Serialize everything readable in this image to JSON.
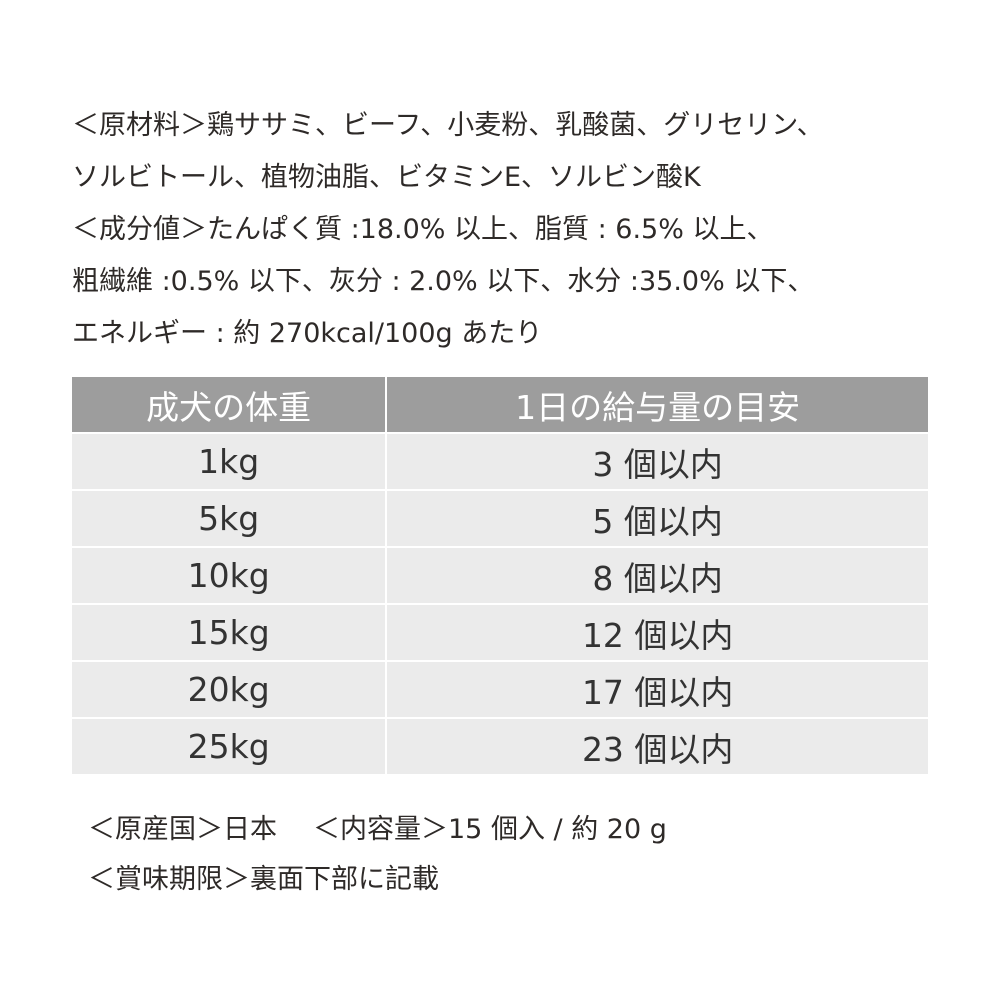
{
  "info_lines": [
    "＜原材料＞鶏ササミ、ビーフ、小麦粉、乳酸菌、グリセリン、",
    "ソルビトール、植物油脂、ビタミンE、ソルビン酸K",
    "＜成分値＞たんぱく質 :18.0% 以上、脂質 : 6.5% 以上、",
    "粗繊維 :0.5% 以下、灰分 : 2.0% 以下、水分 :35.0% 以下、",
    "エネルギー : 約 270kcal/100g あたり"
  ],
  "table": {
    "headers": [
      "成犬の体重",
      "1日の給与量の目安"
    ],
    "rows": [
      [
        "1kg",
        "3 個以内"
      ],
      [
        "5kg",
        "5 個以内"
      ],
      [
        "10kg",
        "8 個以内"
      ],
      [
        "15kg",
        "12 個以内"
      ],
      [
        "20kg",
        "17 個以内"
      ],
      [
        "25kg",
        "23 個以内"
      ]
    ]
  },
  "footer": {
    "origin": "＜原産国＞日本",
    "contents": "＜内容量＞15 個入 / 約 20 g",
    "expiry": "＜賞味期限＞裏面下部に記載"
  },
  "colors": {
    "header_bg": "#9d9d9d",
    "row_bg": "#ebebeb",
    "text": "#2e2a28"
  }
}
